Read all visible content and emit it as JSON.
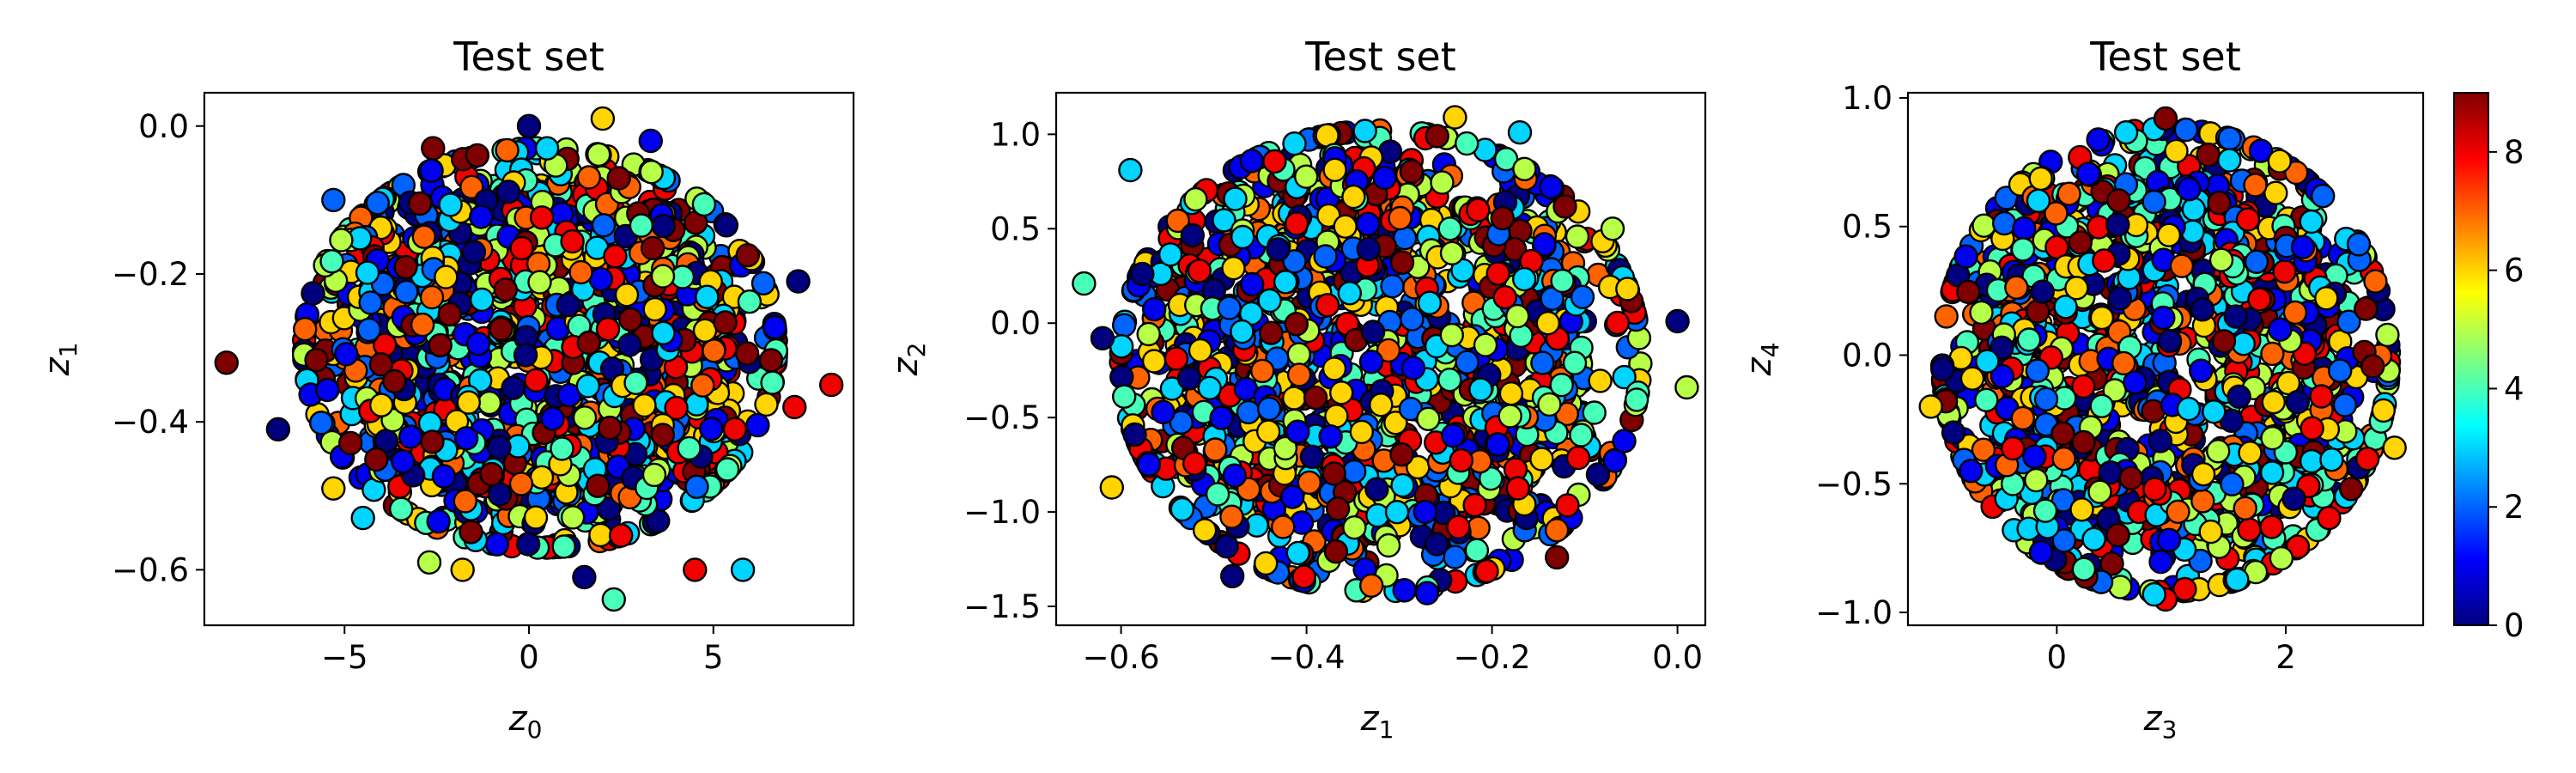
{
  "chart_data": [
    {
      "type": "scatter",
      "title": "Test set",
      "xlabel": "z_0",
      "ylabel": "z_1",
      "xlim": [
        -8.8,
        8.8
      ],
      "ylim": [
        -0.675,
        0.045
      ],
      "xticks": [
        -5,
        0,
        5
      ],
      "xtick_labels": [
        "−5",
        "0",
        "5"
      ],
      "yticks": [
        0.0,
        -0.2,
        -0.4,
        -0.6
      ],
      "ytick_labels": [
        "0.0",
        "−0.2",
        "−0.4",
        "−0.6"
      ],
      "grid": false,
      "distribution": {
        "x_center": 0.3,
        "x_radius": 6.4,
        "y_center": -0.3,
        "y_radius": 0.27
      },
      "points": [
        {
          "x": -8.2,
          "y": -0.32,
          "label": 9
        },
        {
          "x": -6.8,
          "y": -0.41,
          "label": 0
        },
        {
          "x": 0.0,
          "y": 0.0,
          "label": 0
        },
        {
          "x": 2.0,
          "y": 0.01,
          "label": 6
        },
        {
          "x": 3.3,
          "y": -0.02,
          "label": 1
        },
        {
          "x": -2.6,
          "y": -0.03,
          "label": 9
        },
        {
          "x": 8.2,
          "y": -0.35,
          "label": 8
        },
        {
          "x": 7.2,
          "y": -0.38,
          "label": 8
        },
        {
          "x": 7.3,
          "y": -0.21,
          "label": 0
        },
        {
          "x": 2.3,
          "y": -0.64,
          "label": 4
        },
        {
          "x": 5.8,
          "y": -0.6,
          "label": 3
        },
        {
          "x": 4.5,
          "y": -0.6,
          "label": 8
        },
        {
          "x": 1.5,
          "y": -0.61,
          "label": 0
        },
        {
          "x": -1.8,
          "y": -0.6,
          "label": 6
        },
        {
          "x": -2.7,
          "y": -0.59,
          "label": 5
        },
        {
          "x": -5.3,
          "y": -0.49,
          "label": 6
        },
        {
          "x": -4.5,
          "y": -0.53,
          "label": 3
        },
        {
          "x": -5.3,
          "y": -0.1,
          "label": 2
        }
      ]
    },
    {
      "type": "scatter",
      "title": "Test set",
      "xlabel": "z_1",
      "ylabel": "z_2",
      "xlim": [
        -0.67,
        0.03
      ],
      "ylim": [
        -1.6,
        1.22
      ],
      "xticks": [
        -0.6,
        -0.4,
        -0.2,
        0.0
      ],
      "xtick_labels": [
        "−0.6",
        "−0.4",
        "−0.2",
        "0.0"
      ],
      "yticks": [
        1.0,
        0.5,
        0.0,
        -0.5,
        -1.0,
        -1.5
      ],
      "ytick_labels": [
        "1.0",
        "0.5",
        "0.0",
        "−0.5",
        "−1.0",
        "−1.5"
      ],
      "grid": false,
      "distribution": {
        "x_center": -0.32,
        "x_radius": 0.28,
        "y_center": -0.2,
        "y_radius": 1.22
      },
      "points": [
        {
          "x": -0.64,
          "y": 0.21,
          "label": 4
        },
        {
          "x": -0.62,
          "y": -0.08,
          "label": 0
        },
        {
          "x": -0.61,
          "y": -0.87,
          "label": 6
        },
        {
          "x": 0.01,
          "y": -0.34,
          "label": 5
        },
        {
          "x": 0.0,
          "y": 0.01,
          "label": 0
        },
        {
          "x": -0.24,
          "y": 1.09,
          "label": 6
        },
        {
          "x": -0.17,
          "y": 1.01,
          "label": 3
        },
        {
          "x": -0.27,
          "y": -1.43,
          "label": 1
        },
        {
          "x": -0.33,
          "y": -1.39,
          "label": 7
        },
        {
          "x": -0.48,
          "y": -1.34,
          "label": 0
        },
        {
          "x": -0.59,
          "y": 0.81,
          "label": 3
        },
        {
          "x": -0.13,
          "y": -1.24,
          "label": 9
        },
        {
          "x": -0.07,
          "y": 0.5,
          "label": 5
        }
      ]
    },
    {
      "type": "scatter",
      "title": "Test set",
      "xlabel": "z_3",
      "ylabel": "z_4",
      "xlim": [
        -1.3,
        3.2
      ],
      "ylim": [
        -1.05,
        1.02
      ],
      "xticks": [
        0,
        2
      ],
      "xtick_labels": [
        "0",
        "2"
      ],
      "yticks": [
        1.0,
        0.5,
        0.0,
        -0.5,
        -1.0
      ],
      "ytick_labels": [
        "1.0",
        "0.5",
        "0.0",
        "−0.5",
        "−1.0"
      ],
      "grid": false,
      "distribution": {
        "x_center": 0.95,
        "x_radius": 1.95,
        "y_center": -0.02,
        "y_radius": 0.9
      },
      "points": [
        {
          "x": -1.1,
          "y": -0.2,
          "label": 6
        },
        {
          "x": 2.95,
          "y": -0.36,
          "label": 6
        },
        {
          "x": 0.95,
          "y": 0.92,
          "label": 9
        },
        {
          "x": 0.95,
          "y": -0.95,
          "label": 8
        },
        {
          "x": 0.85,
          "y": -0.93,
          "label": 3
        },
        {
          "x": -0.75,
          "y": -0.45,
          "label": 1
        },
        {
          "x": 2.7,
          "y": 0.18,
          "label": 9
        },
        {
          "x": 2.15,
          "y": 0.42,
          "label": 1
        }
      ]
    }
  ],
  "colorbar": {
    "vmin": 0,
    "vmax": 9,
    "ticks": [
      0,
      2,
      4,
      6,
      8
    ],
    "tick_labels": [
      "0",
      "2",
      "4",
      "6",
      "8"
    ],
    "colormap": "jet",
    "stops": [
      "#00007f",
      "#0000ff",
      "#007fff",
      "#00ffff",
      "#7fff7f",
      "#ffff00",
      "#ff7f00",
      "#ff0000",
      "#7f0000"
    ]
  },
  "marker": {
    "edge_color": "#000000",
    "classes": 10
  }
}
